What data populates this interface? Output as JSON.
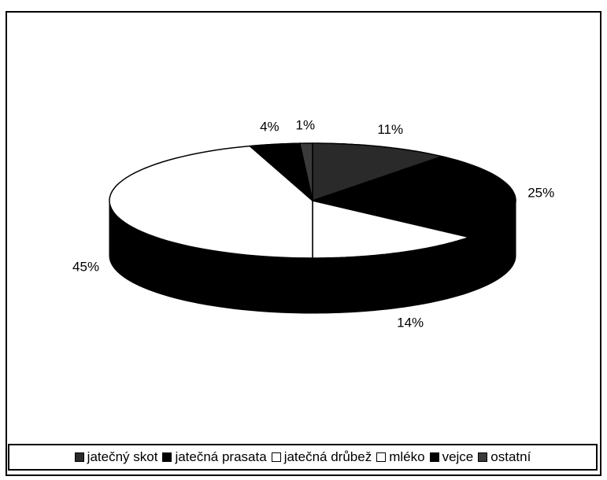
{
  "chart_data": {
    "type": "pie",
    "categories": [
      "jatečný skot",
      "jatečná prasata",
      "jatečná drůbež",
      "mléko",
      "vejce",
      "ostatní"
    ],
    "values": [
      11,
      25,
      14,
      45,
      4,
      1
    ],
    "value_labels": [
      "11%",
      "25%",
      "14%",
      "45%",
      "4%",
      "1%"
    ],
    "colors": [
      "#2a2a2a",
      "#000000",
      "#ffffff",
      "#ffffff",
      "#000000",
      "#3a3a3a"
    ],
    "legend": "bottom"
  }
}
